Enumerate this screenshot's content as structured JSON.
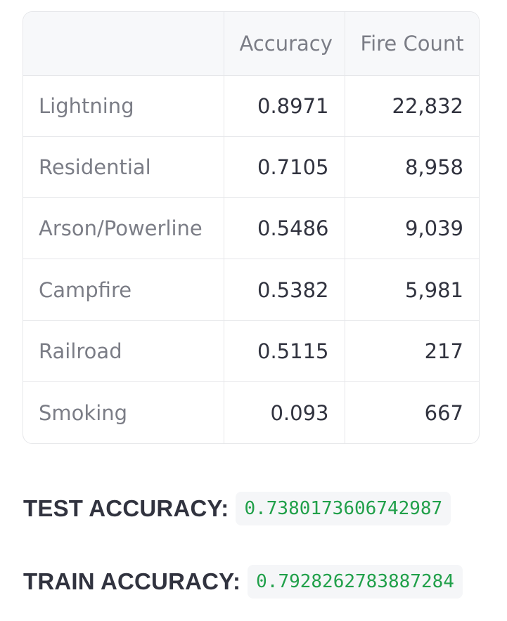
{
  "table": {
    "columns": [
      "",
      "Accuracy",
      "Fire Count"
    ],
    "rows": [
      {
        "label": "Lightning",
        "accuracy": "0.8971",
        "count": "22,832"
      },
      {
        "label": "Residential",
        "accuracy": "0.7105",
        "count": "8,958"
      },
      {
        "label": "Arson/Powerline",
        "accuracy": "0.5486",
        "count": "9,039"
      },
      {
        "label": "Campfire",
        "accuracy": "0.5382",
        "count": "5,981"
      },
      {
        "label": "Railroad",
        "accuracy": "0.5115",
        "count": "217"
      },
      {
        "label": "Smoking",
        "accuracy": "0.093",
        "count": "667"
      }
    ]
  },
  "metrics": {
    "test": {
      "label": "TEST ACCURACY:",
      "value": "0.7380173606742987"
    },
    "train": {
      "label": "TRAIN ACCURACY:",
      "value": "0.7928262783887284"
    }
  },
  "colors": {
    "value_text": "#21a04a",
    "border": "#e6e7ea",
    "header_bg": "#f7f8fa"
  }
}
